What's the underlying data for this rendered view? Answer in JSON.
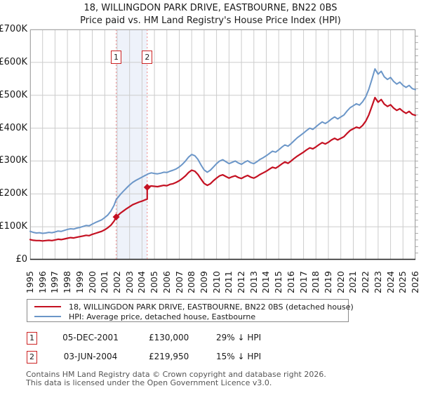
{
  "title": {
    "line1": "18, WILLINGDON PARK DRIVE, EASTBOURNE, BN22 0BS",
    "line2": "Price paid vs. HM Land Registry's House Price Index (HPI)"
  },
  "colors": {
    "property": "#c41122",
    "hpi": "#6b96c8",
    "sale_line": "#ee8888",
    "band": "#eef2fa",
    "grid": "#cccccc",
    "border": "#aaaaaa",
    "axis": "#222222",
    "marker_box_border": "#cc2222"
  },
  "chart_data": {
    "type": "line",
    "title": "18, WILLINGDON PARK DRIVE, EASTBOURNE, BN22 0BS",
    "subtitle": "Price paid vs. HM Land Registry's House Price Index (HPI)",
    "unit": "GBP thousands",
    "xlim": [
      1995,
      2026
    ],
    "ylim": [
      0,
      700
    ],
    "grid": true,
    "x_ticks": [
      1995,
      1996,
      1997,
      1998,
      1999,
      2000,
      2001,
      2002,
      2003,
      2004,
      2005,
      2006,
      2007,
      2008,
      2009,
      2010,
      2011,
      2012,
      2013,
      2014,
      2015,
      2016,
      2017,
      2018,
      2019,
      2020,
      2021,
      2022,
      2023,
      2024,
      2025,
      2026
    ],
    "y_ticks": [
      {
        "v": 0,
        "label": "£0"
      },
      {
        "v": 100,
        "label": "£100K"
      },
      {
        "v": 200,
        "label": "£200K"
      },
      {
        "v": 300,
        "label": "£300K"
      },
      {
        "v": 400,
        "label": "£400K"
      },
      {
        "v": 500,
        "label": "£500K"
      },
      {
        "v": 600,
        "label": "£600K"
      },
      {
        "v": 700,
        "label": "£700K"
      }
    ],
    "band": [
      2001.92,
      2004.42
    ],
    "sales": [
      {
        "n": "1",
        "x": 2001.92,
        "y": 130,
        "date": "05-DEC-2001",
        "price_k": 130
      },
      {
        "n": "2",
        "x": 2004.42,
        "y": 220,
        "date": "03-JUN-2004",
        "price_k": 219.95
      }
    ],
    "series": [
      {
        "name": "18, WILLINGDON PARK DRIVE, EASTBOURNE, BN22 0BS (detached house)",
        "color": "#c41122",
        "points": [
          [
            1995,
            61
          ],
          [
            1995.25,
            59
          ],
          [
            1995.5,
            58
          ],
          [
            1995.75,
            58
          ],
          [
            1996,
            57
          ],
          [
            1996.25,
            58
          ],
          [
            1996.5,
            59
          ],
          [
            1996.75,
            58
          ],
          [
            1997,
            60
          ],
          [
            1997.25,
            62
          ],
          [
            1997.5,
            61
          ],
          [
            1997.75,
            63
          ],
          [
            1998,
            65
          ],
          [
            1998.25,
            67
          ],
          [
            1998.5,
            66
          ],
          [
            1998.75,
            68
          ],
          [
            1999,
            70
          ],
          [
            1999.25,
            72
          ],
          [
            1999.5,
            74
          ],
          [
            1999.75,
            73
          ],
          [
            2000,
            77
          ],
          [
            2000.25,
            80
          ],
          [
            2000.5,
            83
          ],
          [
            2000.75,
            86
          ],
          [
            2001,
            91
          ],
          [
            2001.25,
            97
          ],
          [
            2001.5,
            105
          ],
          [
            2001.75,
            117
          ],
          [
            2001.92,
            130
          ],
          [
            2002,
            132
          ],
          [
            2002.25,
            141
          ],
          [
            2002.5,
            148
          ],
          [
            2002.75,
            155
          ],
          [
            2003,
            161
          ],
          [
            2003.25,
            167
          ],
          [
            2003.5,
            171
          ],
          [
            2003.75,
            175
          ],
          [
            2004,
            178
          ],
          [
            2004.25,
            182
          ],
          [
            2004.42,
            184
          ],
          [
            2004.42,
            220
          ],
          [
            2004.5,
            222
          ],
          [
            2004.75,
            224
          ],
          [
            2005,
            223
          ],
          [
            2005.25,
            222
          ],
          [
            2005.5,
            224
          ],
          [
            2005.75,
            226
          ],
          [
            2006,
            225
          ],
          [
            2006.25,
            229
          ],
          [
            2006.5,
            231
          ],
          [
            2006.75,
            235
          ],
          [
            2007,
            240
          ],
          [
            2007.25,
            247
          ],
          [
            2007.5,
            255
          ],
          [
            2007.75,
            265
          ],
          [
            2008,
            272
          ],
          [
            2008.25,
            269
          ],
          [
            2008.5,
            259
          ],
          [
            2008.75,
            245
          ],
          [
            2009,
            232
          ],
          [
            2009.25,
            226
          ],
          [
            2009.5,
            231
          ],
          [
            2009.75,
            240
          ],
          [
            2010,
            248
          ],
          [
            2010.25,
            255
          ],
          [
            2010.5,
            258
          ],
          [
            2010.75,
            253
          ],
          [
            2011,
            248
          ],
          [
            2011.25,
            252
          ],
          [
            2011.5,
            255
          ],
          [
            2011.75,
            250
          ],
          [
            2012,
            247
          ],
          [
            2012.25,
            252
          ],
          [
            2012.5,
            256
          ],
          [
            2012.75,
            251
          ],
          [
            2013,
            248
          ],
          [
            2013.25,
            253
          ],
          [
            2013.5,
            259
          ],
          [
            2013.75,
            264
          ],
          [
            2014,
            269
          ],
          [
            2014.25,
            275
          ],
          [
            2014.5,
            281
          ],
          [
            2014.75,
            278
          ],
          [
            2015,
            284
          ],
          [
            2015.25,
            291
          ],
          [
            2015.5,
            297
          ],
          [
            2015.75,
            293
          ],
          [
            2016,
            300
          ],
          [
            2016.25,
            308
          ],
          [
            2016.5,
            315
          ],
          [
            2016.75,
            321
          ],
          [
            2017,
            327
          ],
          [
            2017.25,
            334
          ],
          [
            2017.5,
            340
          ],
          [
            2017.75,
            337
          ],
          [
            2018,
            343
          ],
          [
            2018.25,
            350
          ],
          [
            2018.5,
            356
          ],
          [
            2018.75,
            352
          ],
          [
            2019,
            357
          ],
          [
            2019.25,
            364
          ],
          [
            2019.5,
            369
          ],
          [
            2019.75,
            364
          ],
          [
            2020,
            369
          ],
          [
            2020.25,
            374
          ],
          [
            2020.5,
            384
          ],
          [
            2020.75,
            393
          ],
          [
            2021,
            398
          ],
          [
            2021.25,
            403
          ],
          [
            2021.5,
            400
          ],
          [
            2021.75,
            408
          ],
          [
            2022,
            421
          ],
          [
            2022.25,
            440
          ],
          [
            2022.5,
            466
          ],
          [
            2022.75,
            493
          ],
          [
            2023,
            479
          ],
          [
            2023.25,
            487
          ],
          [
            2023.5,
            473
          ],
          [
            2023.75,
            466
          ],
          [
            2024,
            471
          ],
          [
            2024.25,
            461
          ],
          [
            2024.5,
            454
          ],
          [
            2024.75,
            459
          ],
          [
            2025,
            451
          ],
          [
            2025.25,
            445
          ],
          [
            2025.5,
            451
          ],
          [
            2025.75,
            442
          ],
          [
            2026,
            439
          ]
        ]
      },
      {
        "name": "HPI: Average price, detached house, Eastbourne",
        "color": "#6b96c8",
        "points": [
          [
            1995,
            86
          ],
          [
            1995.25,
            83
          ],
          [
            1995.5,
            81
          ],
          [
            1995.75,
            82
          ],
          [
            1996,
            80
          ],
          [
            1996.25,
            81
          ],
          [
            1996.5,
            83
          ],
          [
            1996.75,
            82
          ],
          [
            1997,
            84
          ],
          [
            1997.25,
            87
          ],
          [
            1997.5,
            86
          ],
          [
            1997.75,
            89
          ],
          [
            1998,
            92
          ],
          [
            1998.25,
            94
          ],
          [
            1998.5,
            93
          ],
          [
            1998.75,
            96
          ],
          [
            1999,
            98
          ],
          [
            1999.25,
            101
          ],
          [
            1999.5,
            104
          ],
          [
            1999.75,
            103
          ],
          [
            2000,
            108
          ],
          [
            2000.25,
            113
          ],
          [
            2000.5,
            117
          ],
          [
            2000.75,
            121
          ],
          [
            2001,
            128
          ],
          [
            2001.25,
            136
          ],
          [
            2001.5,
            148
          ],
          [
            2001.75,
            165
          ],
          [
            2001.92,
            183
          ],
          [
            2002,
            186
          ],
          [
            2002.25,
            198
          ],
          [
            2002.5,
            208
          ],
          [
            2002.75,
            218
          ],
          [
            2003,
            227
          ],
          [
            2003.25,
            235
          ],
          [
            2003.5,
            241
          ],
          [
            2003.75,
            246
          ],
          [
            2004,
            251
          ],
          [
            2004.25,
            256
          ],
          [
            2004.42,
            259
          ],
          [
            2004.5,
            261
          ],
          [
            2004.75,
            264
          ],
          [
            2005,
            262
          ],
          [
            2005.25,
            261
          ],
          [
            2005.5,
            263
          ],
          [
            2005.75,
            266
          ],
          [
            2006,
            265
          ],
          [
            2006.25,
            269
          ],
          [
            2006.5,
            272
          ],
          [
            2006.75,
            276
          ],
          [
            2007,
            282
          ],
          [
            2007.25,
            290
          ],
          [
            2007.5,
            300
          ],
          [
            2007.75,
            312
          ],
          [
            2008,
            320
          ],
          [
            2008.25,
            316
          ],
          [
            2008.5,
            305
          ],
          [
            2008.75,
            288
          ],
          [
            2009,
            273
          ],
          [
            2009.25,
            266
          ],
          [
            2009.5,
            272
          ],
          [
            2009.75,
            282
          ],
          [
            2010,
            292
          ],
          [
            2010.25,
            300
          ],
          [
            2010.5,
            304
          ],
          [
            2010.75,
            298
          ],
          [
            2011,
            292
          ],
          [
            2011.25,
            296
          ],
          [
            2011.5,
            300
          ],
          [
            2011.75,
            294
          ],
          [
            2012,
            290
          ],
          [
            2012.25,
            296
          ],
          [
            2012.5,
            301
          ],
          [
            2012.75,
            295
          ],
          [
            2013,
            292
          ],
          [
            2013.25,
            298
          ],
          [
            2013.5,
            305
          ],
          [
            2013.75,
            310
          ],
          [
            2014,
            316
          ],
          [
            2014.25,
            323
          ],
          [
            2014.5,
            330
          ],
          [
            2014.75,
            327
          ],
          [
            2015,
            334
          ],
          [
            2015.25,
            342
          ],
          [
            2015.5,
            349
          ],
          [
            2015.75,
            345
          ],
          [
            2016,
            353
          ],
          [
            2016.25,
            362
          ],
          [
            2016.5,
            371
          ],
          [
            2016.75,
            378
          ],
          [
            2017,
            385
          ],
          [
            2017.25,
            393
          ],
          [
            2017.5,
            400
          ],
          [
            2017.75,
            396
          ],
          [
            2018,
            404
          ],
          [
            2018.25,
            412
          ],
          [
            2018.5,
            419
          ],
          [
            2018.75,
            414
          ],
          [
            2019,
            420
          ],
          [
            2019.25,
            428
          ],
          [
            2019.5,
            434
          ],
          [
            2019.75,
            428
          ],
          [
            2020,
            434
          ],
          [
            2020.25,
            440
          ],
          [
            2020.5,
            452
          ],
          [
            2020.75,
            462
          ],
          [
            2021,
            468
          ],
          [
            2021.25,
            474
          ],
          [
            2021.5,
            470
          ],
          [
            2021.75,
            480
          ],
          [
            2022,
            495
          ],
          [
            2022.25,
            518
          ],
          [
            2022.5,
            548
          ],
          [
            2022.75,
            580
          ],
          [
            2023,
            564
          ],
          [
            2023.25,
            573
          ],
          [
            2023.5,
            556
          ],
          [
            2023.75,
            548
          ],
          [
            2024,
            554
          ],
          [
            2024.25,
            542
          ],
          [
            2024.5,
            534
          ],
          [
            2024.75,
            540
          ],
          [
            2025,
            530
          ],
          [
            2025.25,
            524
          ],
          [
            2025.5,
            530
          ],
          [
            2025.75,
            520
          ],
          [
            2026,
            517
          ]
        ]
      }
    ],
    "legend_position": "bottom"
  },
  "legend": {
    "items": [
      {
        "label": "18, WILLINGDON PARK DRIVE, EASTBOURNE, BN22 0BS (detached house)",
        "color": "#c41122"
      },
      {
        "label": "HPI: Average price, detached house, Eastbourne",
        "color": "#6b96c8"
      }
    ]
  },
  "transactions": [
    {
      "num": "1",
      "date": "05-DEC-2001",
      "price": "£130,000",
      "hpi": "29% ↓ HPI"
    },
    {
      "num": "2",
      "date": "03-JUN-2004",
      "price": "£219,950",
      "hpi": "15% ↓ HPI"
    }
  ],
  "footer": {
    "line1": "Contains HM Land Registry data © Crown copyright and database right 2026.",
    "line2": "This data is licensed under the Open Government Licence v3.0."
  }
}
